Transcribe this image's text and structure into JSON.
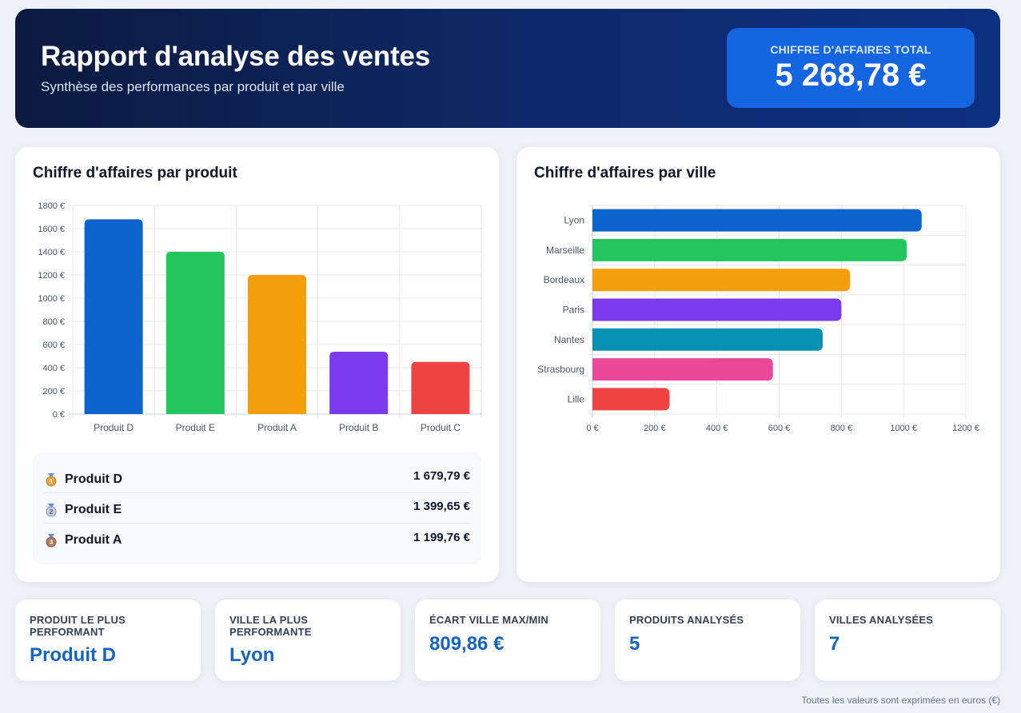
{
  "header": {
    "title": "Rapport d'analyse des ventes",
    "subtitle": "Synthèse des performances par produit et par ville",
    "total_label": "CHIFFRE D'AFFAIRES TOTAL",
    "total_value": "5 268,78 €"
  },
  "product_card": {
    "title": "Chiffre d'affaires par produit",
    "top3": [
      {
        "name": "Produit D",
        "amount": "1 679,79 €",
        "medal_icon": "gold-medal-icon",
        "medal_color": "#e8a33d",
        "rank": "1"
      },
      {
        "name": "Produit E",
        "amount": "1 399,65 €",
        "medal_icon": "silver-medal-icon",
        "medal_color": "#a7b4d0",
        "rank": "2"
      },
      {
        "name": "Produit A",
        "amount": "1 199,76 €",
        "medal_icon": "bronze-medal-icon",
        "medal_color": "#b07a5a",
        "rank": "3"
      }
    ]
  },
  "city_card": {
    "title": "Chiffre d'affaires par ville"
  },
  "chart_data": [
    {
      "type": "bar",
      "orientation": "vertical",
      "categories": [
        "Produit D",
        "Produit E",
        "Produit A",
        "Produit B",
        "Produit C"
      ],
      "values": [
        1679.79,
        1399.65,
        1199.76,
        538,
        450
      ],
      "colors": [
        "#0b63ce",
        "#22c55e",
        "#f59e0b",
        "#7c3aed",
        "#ef4444"
      ],
      "ylim": [
        0,
        1800
      ],
      "yticks": [
        "0 €",
        "200 €",
        "400 €",
        "600 €",
        "800 €",
        "1000 €",
        "1200 €",
        "1400 €",
        "1600 €",
        "1800 €"
      ],
      "grid": true,
      "legend": "none"
    },
    {
      "type": "bar",
      "orientation": "horizontal",
      "categories": [
        "Lyon",
        "Marseille",
        "Bordeaux",
        "Paris",
        "Nantes",
        "Strasbourg",
        "Lille"
      ],
      "values": [
        1058,
        1010,
        828,
        800,
        740,
        580,
        248
      ],
      "colors": [
        "#0b63ce",
        "#22c55e",
        "#f59e0b",
        "#7c3aed",
        "#0891b2",
        "#ec4899",
        "#ef4444"
      ],
      "xlim": [
        0,
        1200
      ],
      "xticks": [
        "0 €",
        "200 €",
        "400 €",
        "600 €",
        "800 €",
        "1000 €",
        "1200 €"
      ],
      "grid": true,
      "legend": "none"
    }
  ],
  "kpis": [
    {
      "label": "PRODUIT LE PLUS PERFORMANT",
      "value": "Produit D"
    },
    {
      "label": "VILLE LA PLUS PERFORMANTE",
      "value": "Lyon"
    },
    {
      "label": "ÉCART VILLE MAX/MIN",
      "value": "809,86 €"
    },
    {
      "label": "PRODUITS ANALYSÉS",
      "value": "5"
    },
    {
      "label": "VILLES ANALYSÉES",
      "value": "7"
    }
  ],
  "footer": {
    "note": "Toutes les valeurs sont exprimées en euros (€)"
  }
}
